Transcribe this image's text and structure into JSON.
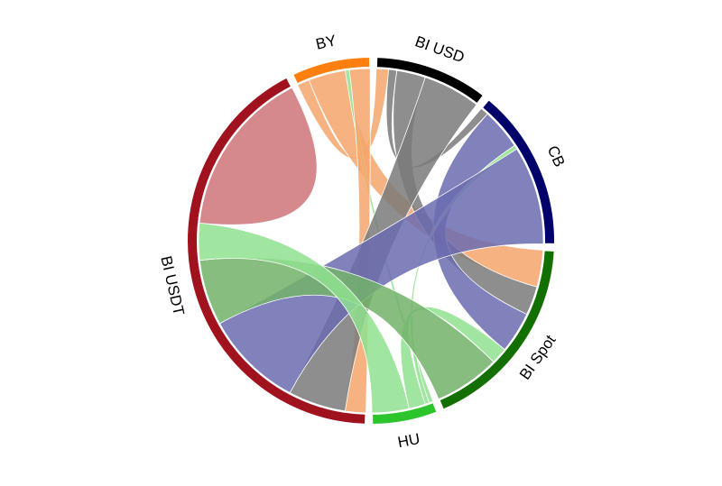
{
  "chart_data": {
    "type": "chord",
    "title": "",
    "groups": [
      {
        "name": "BY",
        "label": "BY",
        "color": "#ff7f0e"
      },
      {
        "name": "BI USD",
        "label": "BI USD",
        "color": "#000000"
      },
      {
        "name": "CB",
        "label": "CB",
        "color": "#00006b"
      },
      {
        "name": "BI Spot",
        "label": "BI Spot",
        "color": "#137000"
      },
      {
        "name": "HU",
        "label": "HU",
        "color": "#2bc42b"
      },
      {
        "name": "BI USDT",
        "label": "BI USDT",
        "color": "#a1121f"
      }
    ],
    "matrix": [
      [
        0,
        3,
        0,
        9,
        1,
        5
      ],
      [
        3,
        0,
        2,
        7,
        0,
        14
      ],
      [
        0,
        2,
        0,
        10,
        1,
        24
      ],
      [
        9,
        7,
        10,
        0,
        4,
        16
      ],
      [
        1,
        0,
        1,
        4,
        0,
        9
      ],
      [
        5,
        14,
        24,
        16,
        9,
        41
      ]
    ],
    "ribbon_colors": {
      "BY": "#f5a56b",
      "BI USD": "#7a7a7a",
      "CB": "#6b6bb0",
      "BI Spot": "#72b36a",
      "HU": "#8fe08f",
      "BI USDT": "#cf7478"
    },
    "legend": "none",
    "grid": false
  }
}
